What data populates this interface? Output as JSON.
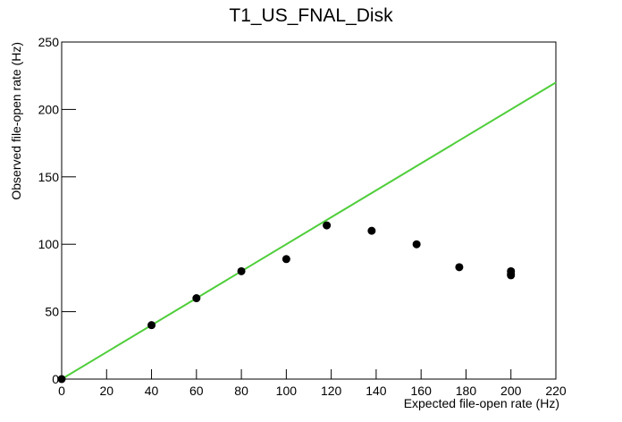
{
  "chart_data": {
    "type": "scatter",
    "title": "T1_US_FNAL_Disk",
    "x_label": "Expected file-open rate (Hz)",
    "y_label": "Observed file-open rate (Hz)",
    "x": [
      0,
      40,
      60,
      80,
      100,
      118,
      138,
      158,
      177,
      200,
      200,
      200
    ],
    "values": [
      0,
      40,
      60,
      80,
      89,
      114,
      110,
      100,
      83,
      80,
      78,
      77
    ],
    "color": "#000000",
    "reference_line": {
      "x": [
        0,
        220
      ],
      "values": [
        0,
        220
      ],
      "color": "#4fce3a"
    },
    "xlim": [
      0,
      220
    ],
    "xticks": [
      0,
      20,
      40,
      60,
      80,
      100,
      120,
      140,
      160,
      180,
      200,
      220
    ],
    "ylim": [
      0,
      250
    ],
    "yticks": [
      0,
      50,
      100,
      150,
      200,
      250
    ],
    "grid": false
  }
}
